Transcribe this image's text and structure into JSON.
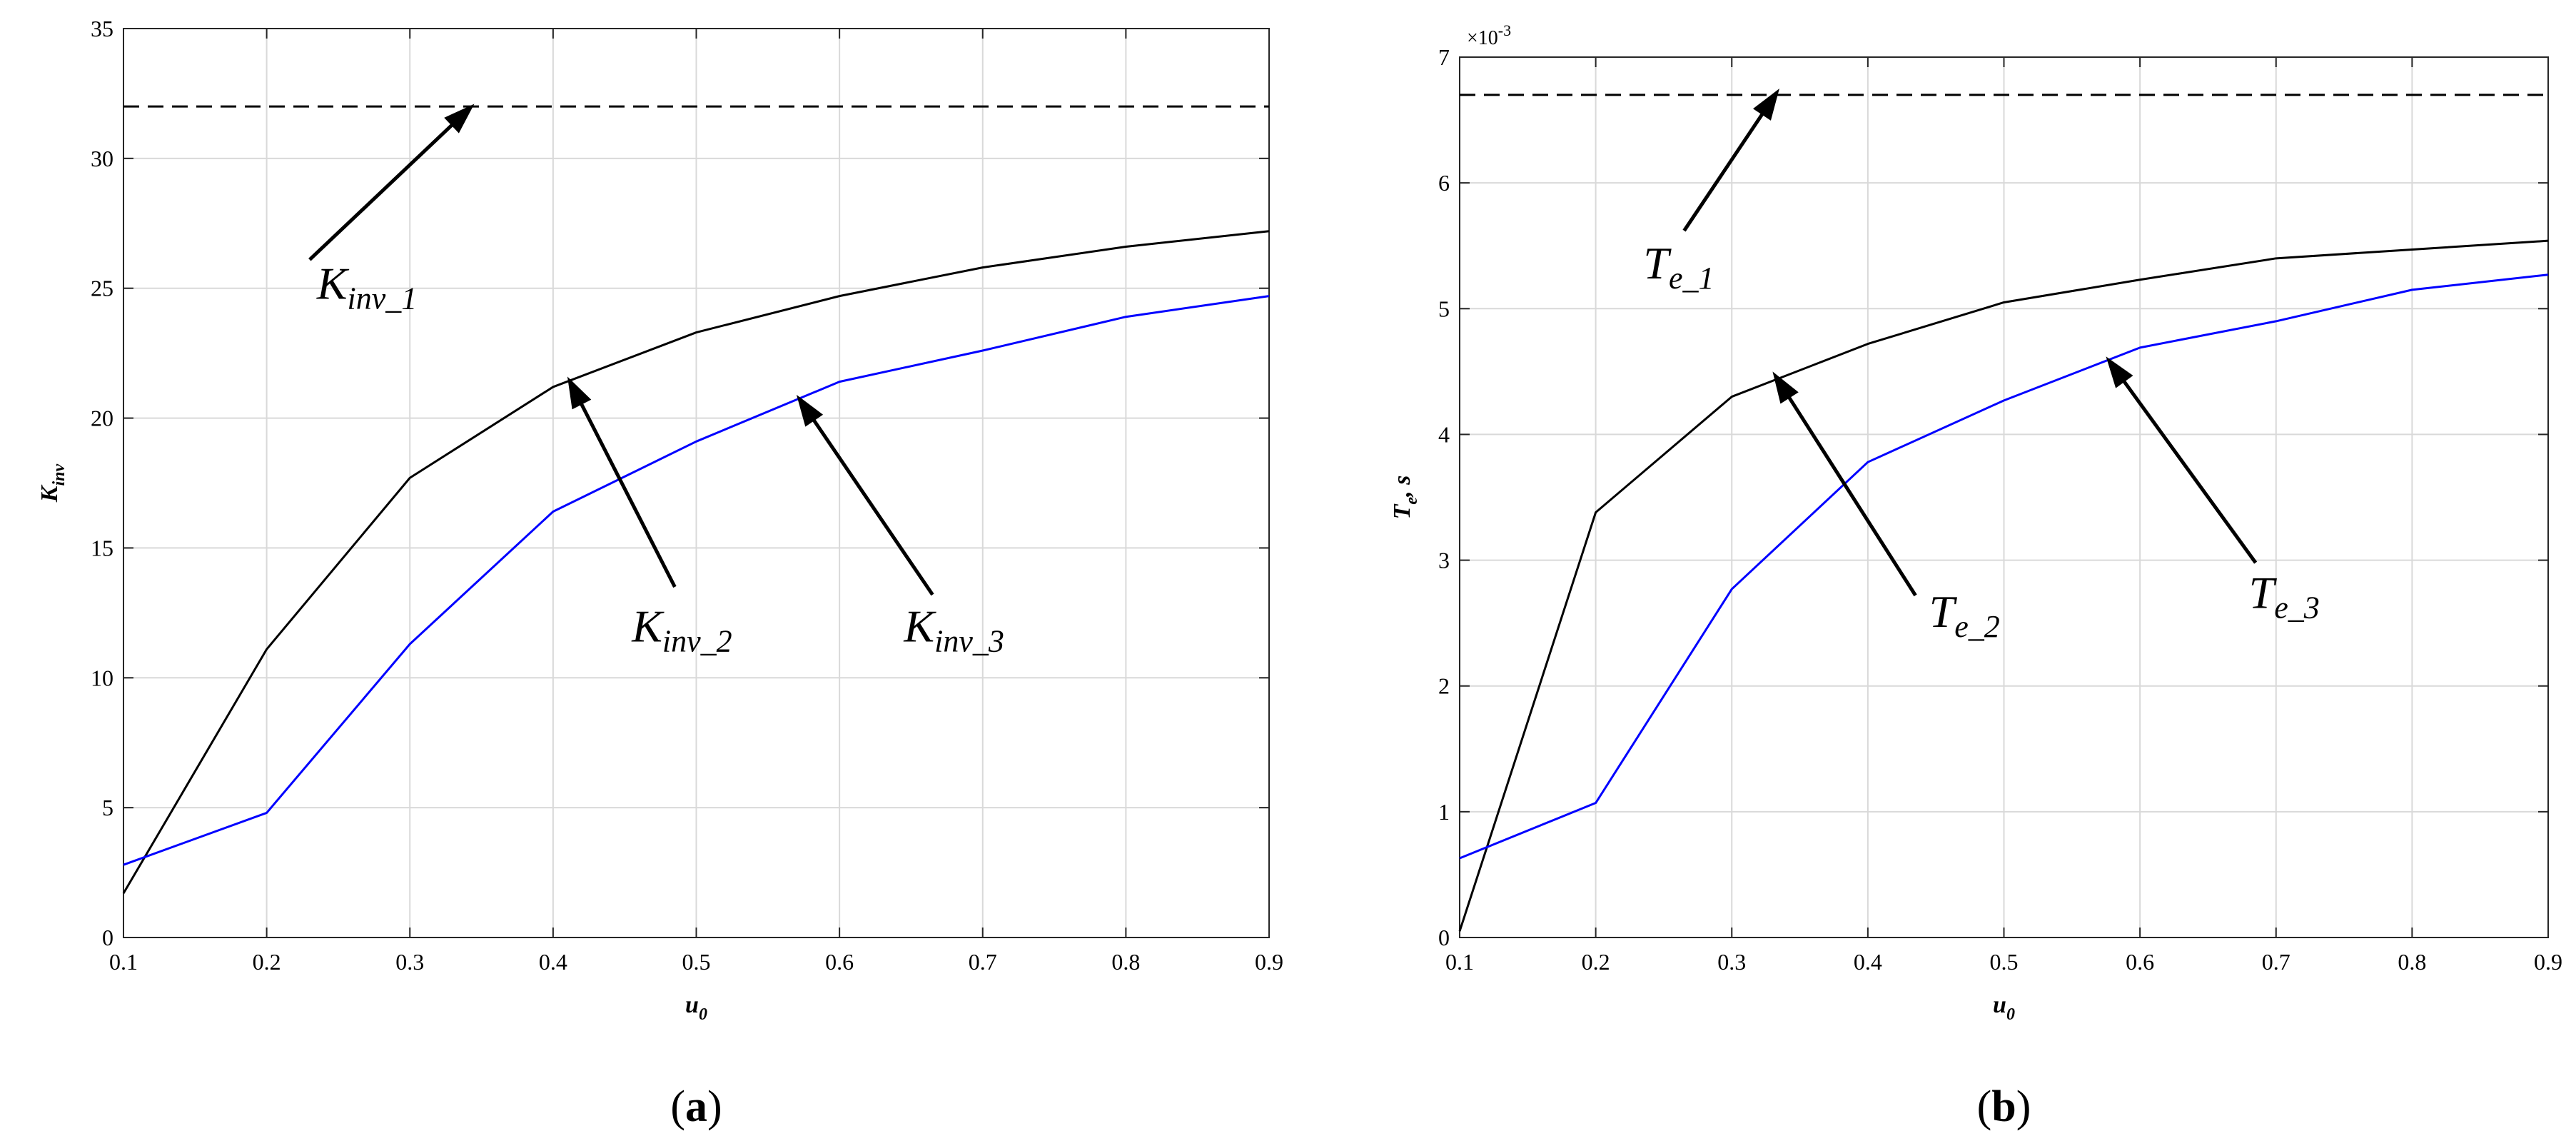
{
  "chart_data": [
    {
      "type": "line",
      "panel_label": "a",
      "x": [
        0.1,
        0.2,
        0.3,
        0.4,
        0.5,
        0.6,
        0.7,
        0.8,
        0.9
      ],
      "xlim": [
        0.1,
        0.9
      ],
      "ylim": [
        0,
        35
      ],
      "xticks": [
        0.1,
        0.2,
        0.3,
        0.4,
        0.5,
        0.6,
        0.7,
        0.8,
        0.9
      ],
      "yticks": [
        0,
        5,
        10,
        15,
        20,
        25,
        30,
        35
      ],
      "xlabel": {
        "main": "u",
        "sub": "0"
      },
      "ylabel": {
        "main": "K",
        "sub": "inv"
      },
      "grid": true,
      "series": [
        {
          "name": "K_inv_1",
          "color": "#000000",
          "dashed": true,
          "values": [
            32,
            32,
            32,
            32,
            32,
            32,
            32,
            32,
            32
          ]
        },
        {
          "name": "K_inv_2",
          "color": "#000000",
          "dashed": false,
          "values": [
            1.7,
            11.1,
            17.7,
            21.2,
            23.3,
            24.7,
            25.8,
            26.6,
            27.2
          ]
        },
        {
          "name": "K_inv_3",
          "color": "#0000ff",
          "dashed": false,
          "values": [
            2.8,
            4.8,
            11.3,
            16.4,
            19.1,
            21.4,
            22.6,
            23.9,
            24.7
          ]
        }
      ],
      "annotations": [
        {
          "main": "K",
          "sub": "inv_1",
          "text_at": [
            0.235,
            24.6
          ],
          "arrow_from": [
            0.23,
            26.1
          ],
          "arrow_to": [
            0.345,
            32.1
          ]
        },
        {
          "main": "K",
          "sub": "inv_2",
          "text_at": [
            0.455,
            11.4
          ],
          "arrow_from": [
            0.485,
            13.5
          ],
          "arrow_to": [
            0.41,
            21.6
          ]
        },
        {
          "main": "K",
          "sub": "inv_3",
          "text_at": [
            0.645,
            11.4
          ],
          "arrow_from": [
            0.665,
            13.2
          ],
          "arrow_to": [
            0.57,
            20.9
          ]
        }
      ]
    },
    {
      "type": "line",
      "panel_label": "b",
      "x": [
        0.1,
        0.2,
        0.3,
        0.4,
        0.5,
        0.6,
        0.7,
        0.8,
        0.9
      ],
      "xlim": [
        0.1,
        0.9
      ],
      "ylim": [
        0,
        0.007
      ],
      "xticks": [
        0.1,
        0.2,
        0.3,
        0.4,
        0.5,
        0.6,
        0.7,
        0.8,
        0.9
      ],
      "yticks": [
        0,
        0.001,
        0.002,
        0.003,
        0.004,
        0.005,
        0.006,
        0.007
      ],
      "yticklabels": [
        "0",
        "1",
        "2",
        "3",
        "4",
        "5",
        "6",
        "7"
      ],
      "yaxis_exponent": "×10-3",
      "xlabel": {
        "main": "u",
        "sub": "0"
      },
      "ylabel": {
        "main": "T",
        "sub": "e",
        "suffix": ", s"
      },
      "grid": true,
      "series": [
        {
          "name": "T_e_1",
          "color": "#000000",
          "dashed": true,
          "values": [
            0.0067,
            0.0067,
            0.0067,
            0.0067,
            0.0067,
            0.0067,
            0.0067,
            0.0067,
            0.0067
          ]
        },
        {
          "name": "T_e_2",
          "color": "#000000",
          "dashed": false,
          "values": [
            5e-05,
            0.00338,
            0.0043,
            0.00472,
            0.00505,
            0.00523,
            0.0054,
            0.00547,
            0.00554
          ]
        },
        {
          "name": "T_e_3",
          "color": "#0000ff",
          "dashed": false,
          "values": [
            0.00063,
            0.00107,
            0.00277,
            0.00378,
            0.00427,
            0.00469,
            0.0049,
            0.00515,
            0.00527
          ]
        }
      ],
      "annotations": [
        {
          "main": "T",
          "sub": "e_1",
          "text_at": [
            0.235,
            0.00524
          ],
          "arrow_from": [
            0.265,
            0.00562
          ],
          "arrow_to": [
            0.335,
            0.00675
          ]
        },
        {
          "main": "T",
          "sub": "e_2",
          "text_at": [
            0.445,
            0.00247
          ],
          "arrow_from": [
            0.435,
            0.00272
          ],
          "arrow_to": [
            0.33,
            0.0045
          ]
        },
        {
          "main": "T",
          "sub": "e_3",
          "text_at": [
            0.68,
            0.00262
          ],
          "arrow_from": [
            0.685,
            0.00298
          ],
          "arrow_to": [
            0.575,
            0.00462
          ]
        }
      ]
    }
  ]
}
